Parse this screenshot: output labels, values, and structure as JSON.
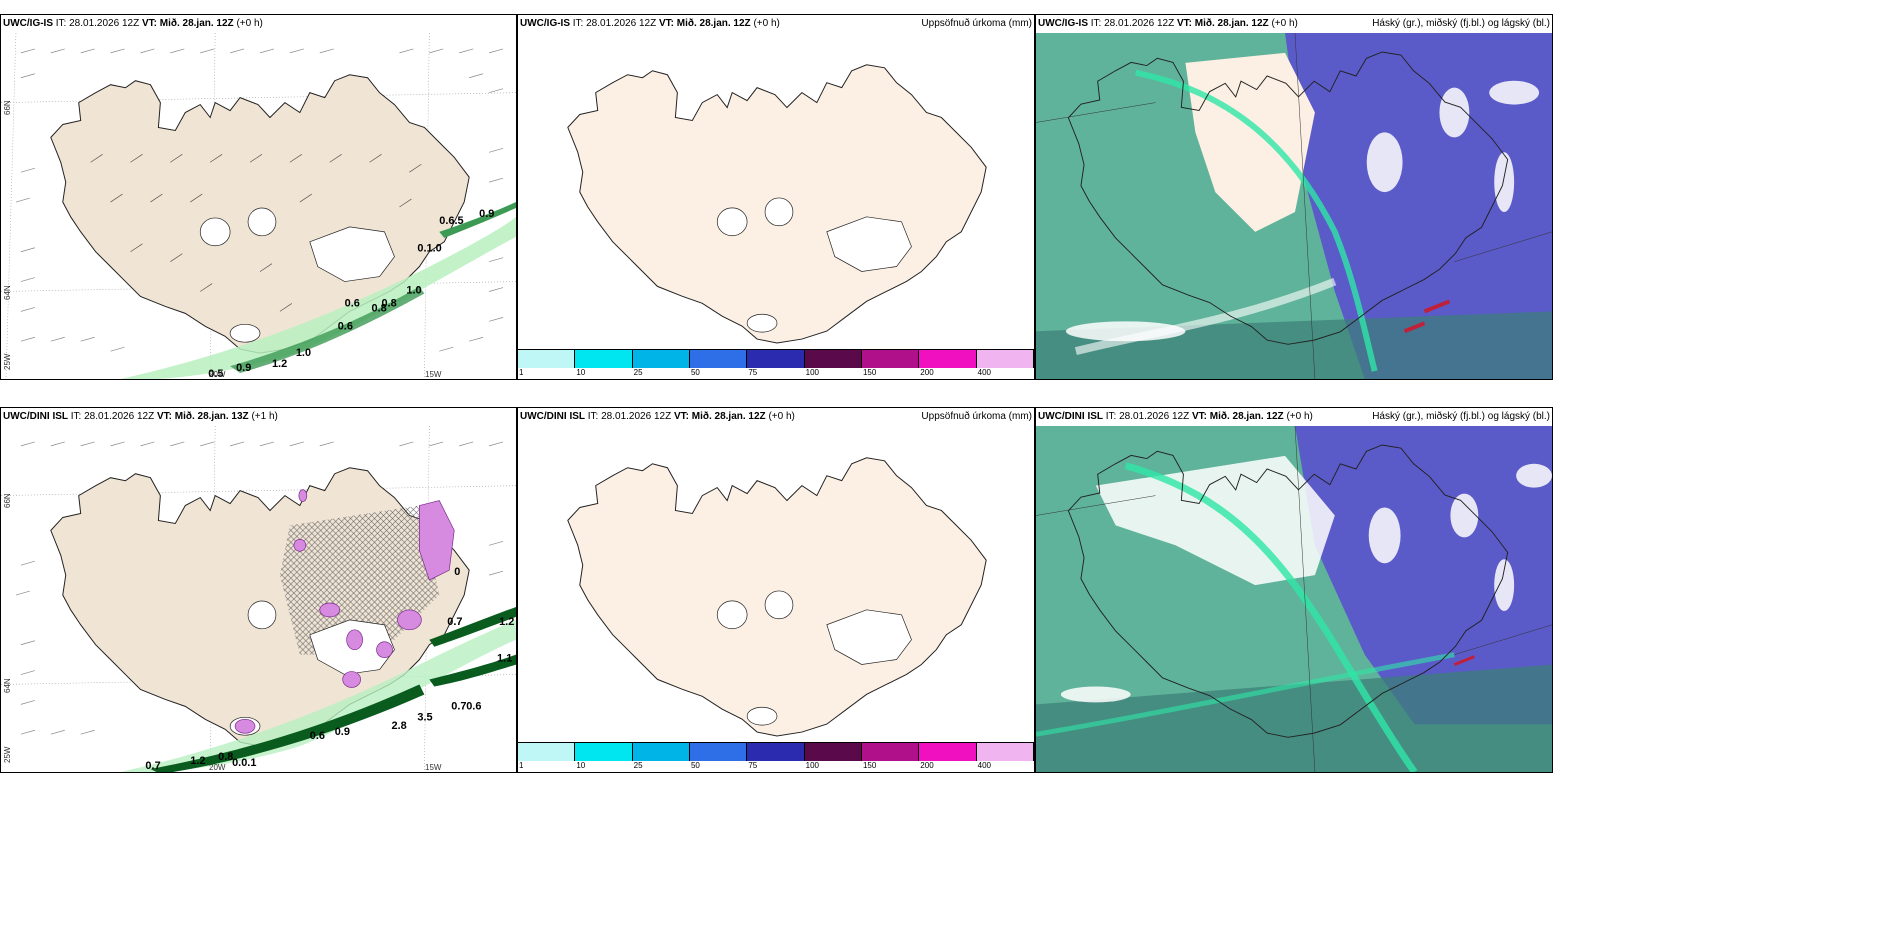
{
  "colors": {
    "land": "#f0e4d4",
    "land_light": "#fcefe3",
    "green_light": "#b8f0c0",
    "green_dark": "#0a5c1e",
    "teal": "#5fb39a",
    "purple": "#5a5ac8",
    "magenta": "#d68be0",
    "red": "#c0203a"
  },
  "panels": {
    "tl": {
      "model": "UWC/IG-IS",
      "it": "IT: 28.01.2026 12Z",
      "vt": "VT: Mið. 28.jan. 12Z",
      "lead": "(+0 h)",
      "labels": [
        "0.5",
        "0.9",
        "1.2",
        "1.0",
        "0.6",
        "0.6",
        "0.8",
        "0.8",
        "1.0",
        "0.1.0",
        "0.6.5",
        "0.9"
      ]
    },
    "tm": {
      "model": "UWC/IG-IS",
      "it": "IT: 28.01.2026 12Z",
      "vt": "VT: Mið. 28.jan. 12Z",
      "lead": "(+0 h)",
      "title": "Uppsöfnuð úrkoma (mm)"
    },
    "tr": {
      "model": "UWC/IG-IS",
      "it": "IT: 28.01.2026 12Z",
      "vt": "VT: Mið. 28.jan. 12Z",
      "lead": "(+0 h)",
      "title": "Háský (gr.), miðský (fj.bl.) og lágský (bl.)"
    },
    "bl": {
      "model": "UWC/DINI ISL",
      "it": "IT: 28.01.2026 12Z",
      "vt": "VT: Mið. 28.jan. 13Z",
      "lead": "(+1 h)",
      "labels": [
        "0.7",
        "1.2",
        "0.8",
        "0.0.1",
        "0.6",
        "0.9",
        "3.5",
        "2.8",
        "0.7",
        "0.6",
        "1.1",
        "1.2",
        "0.7",
        "0"
      ]
    },
    "bm": {
      "model": "UWC/DINI ISL",
      "it": "IT: 28.01.2026 12Z",
      "vt": "VT: Mið. 28.jan. 12Z",
      "lead": "(+0 h)",
      "title": "Uppsöfnuð úrkoma (mm)"
    },
    "br": {
      "model": "UWC/DINI ISL",
      "it": "IT: 28.01.2026 12Z",
      "vt": "VT: Mið. 28.jan. 12Z",
      "lead": "(+0 h)",
      "title": "Háský (gr.), miðský (fj.bl.) og lágský (bl.)"
    }
  },
  "axis_labels": {
    "lon_20": "20W",
    "lon_15": "15W",
    "lat_66": "66N",
    "lat_64": "64N",
    "lon_25": "25W"
  },
  "colorbar": {
    "ticks": [
      "1",
      "10",
      "25",
      "50",
      "75",
      "100",
      "150",
      "200",
      "400"
    ],
    "colors": [
      "#bff7f7",
      "#00e6f0",
      "#00b4e8",
      "#2e6ee6",
      "#2b2bb0",
      "#5a0a4a",
      "#b0108a",
      "#f010c0",
      "#f0b4f0"
    ]
  }
}
